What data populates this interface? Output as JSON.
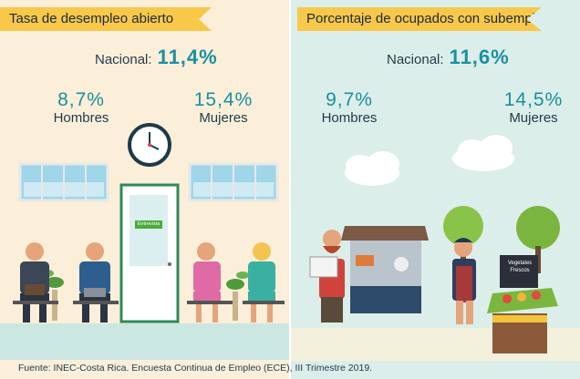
{
  "left": {
    "title": "Tasa de desempleo abierto",
    "national_label": "Nacional:",
    "national_value": "11,4%",
    "men_value": "8,7%",
    "men_label": "Hombres",
    "women_value": "15,4%",
    "women_label": "Mujeres",
    "door_sign": "Entrevista"
  },
  "right": {
    "title": "Porcentaje de ocupados con subempleo",
    "national_label": "Nacional:",
    "national_value": "11,6%",
    "men_value": "9,7%",
    "men_label": "Hombres",
    "women_value": "14,5%",
    "women_label": "Mujeres",
    "sign_text": "Vegetales Frescos"
  },
  "source": "Fuente: INEC-Costa Rica. Encuesta Continua de Empleo (ECE), III Trimestre 2019.",
  "colors": {
    "accent": "#1a8fa0",
    "banner": "#f7c84a",
    "left_bg": "#fbefd9",
    "right_bg": "#dceee9"
  }
}
